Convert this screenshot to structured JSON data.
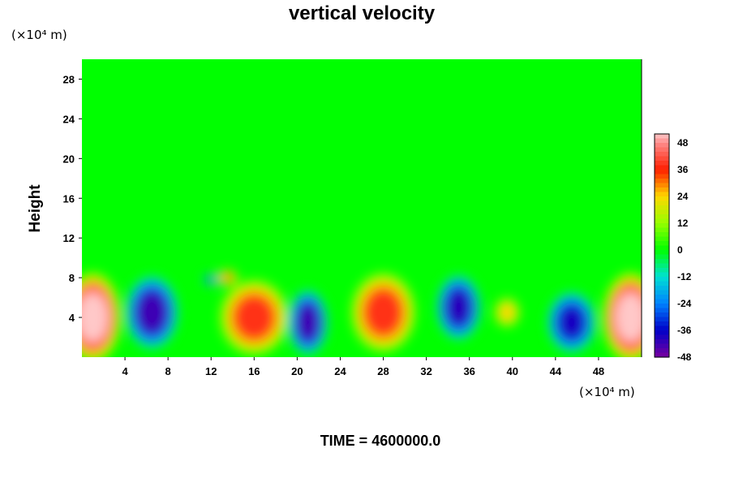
{
  "chart_data": {
    "type": "heatmap",
    "title": "vertical velocity",
    "ylabel": "Height",
    "xlabel": "",
    "x_unit_label": "(×10⁴ m)",
    "y_unit_label": "(×10⁴ m)",
    "xlim": [
      0,
      52
    ],
    "ylim": [
      0,
      30
    ],
    "x_ticks": [
      4,
      8,
      12,
      16,
      20,
      24,
      28,
      32,
      36,
      40,
      44,
      48
    ],
    "y_ticks": [
      4,
      8,
      12,
      16,
      20,
      24,
      28
    ],
    "colorbar": {
      "range": [
        -48,
        52
      ],
      "ticks": [
        48,
        36,
        24,
        12,
        0,
        -12,
        -24,
        -36,
        -48
      ]
    },
    "background_value": 0,
    "cells": [
      {
        "x": 1,
        "y": 4,
        "rx": 2.6,
        "ry": 4.5,
        "value": 52
      },
      {
        "x": 51,
        "y": 4,
        "rx": 2.6,
        "ry": 4.5,
        "value": 52
      },
      {
        "x": 6.5,
        "y": 4.5,
        "rx": 2.4,
        "ry": 3.6,
        "value": -42
      },
      {
        "x": 12,
        "y": 7.8,
        "rx": 0.7,
        "ry": 0.5,
        "value": -30
      },
      {
        "x": 13.5,
        "y": 8,
        "rx": 1.0,
        "ry": 0.8,
        "value": 30
      },
      {
        "x": 16,
        "y": 4,
        "rx": 3.2,
        "ry": 3.8,
        "value": 38
      },
      {
        "x": 21,
        "y": 3.5,
        "rx": 1.8,
        "ry": 3.2,
        "value": -42
      },
      {
        "x": 28,
        "y": 4.5,
        "rx": 3.0,
        "ry": 4.0,
        "value": 38
      },
      {
        "x": 35,
        "y": 5,
        "rx": 2.0,
        "ry": 3.2,
        "value": -40
      },
      {
        "x": 39.5,
        "y": 4.5,
        "rx": 1.2,
        "ry": 1.5,
        "value": 24
      },
      {
        "x": 45.5,
        "y": 3.5,
        "rx": 2.2,
        "ry": 3.0,
        "value": -38
      }
    ],
    "footer": "TIME = 4600000.0"
  }
}
